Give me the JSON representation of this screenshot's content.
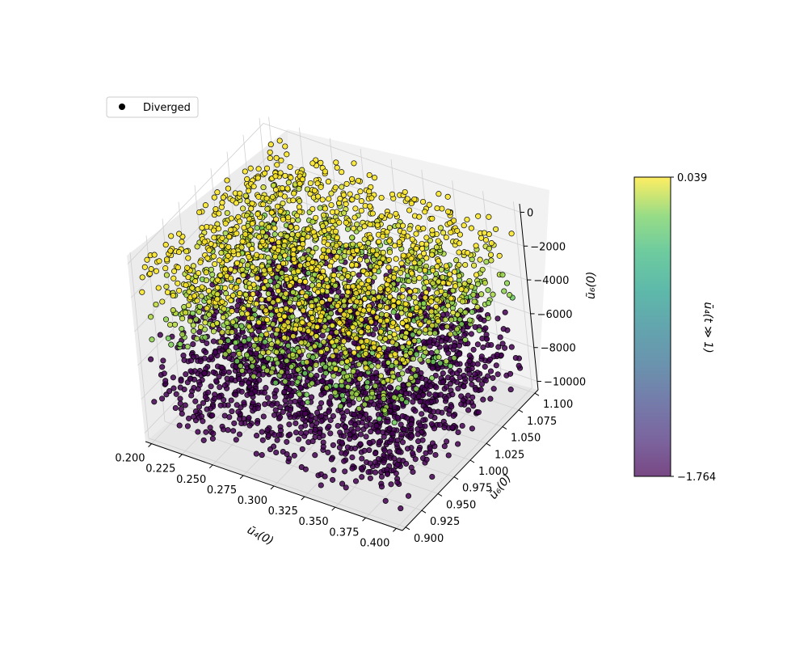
{
  "chart_data": {
    "type": "scatter",
    "projection": "3d",
    "xlabel": "ū₄(0)",
    "ylabel": "ū₆(0)",
    "zlabel": "ũ₆(0)",
    "xlim": [
      0.195,
      0.405
    ],
    "ylim": [
      0.895,
      1.105
    ],
    "zlim": [
      -10500,
      500
    ],
    "xticks": [
      "0.200",
      "0.225",
      "0.250",
      "0.275",
      "0.300",
      "0.325",
      "0.350",
      "0.375",
      "0.400"
    ],
    "yticks": [
      "0.900",
      "0.925",
      "0.950",
      "0.975",
      "1.000",
      "1.025",
      "1.050",
      "1.075",
      "1.100"
    ],
    "zticks": [
      "0",
      "−2000",
      "−4000",
      "−6000",
      "−8000",
      "−10000"
    ],
    "colorbar": {
      "label": "ū₄(t ≫ 1)",
      "min_label": "−1.764",
      "max_label": "0.039",
      "min": -1.764,
      "max": 0.039,
      "colormap": "viridis"
    },
    "legend": {
      "entries": [
        "Diverged"
      ],
      "placement": "upper-left"
    },
    "series": [
      {
        "name": "Diverged",
        "color": "#000000",
        "marker": "circle"
      }
    ],
    "population": {
      "x_range": [
        0.2,
        0.4
      ],
      "y_range": [
        0.9,
        1.1
      ],
      "z_range": [
        -10000,
        0
      ],
      "note_threshold_z": -5000,
      "upper_values": [
        -0.3,
        0.039
      ],
      "lower_value": -1.764
    },
    "grid": true
  }
}
